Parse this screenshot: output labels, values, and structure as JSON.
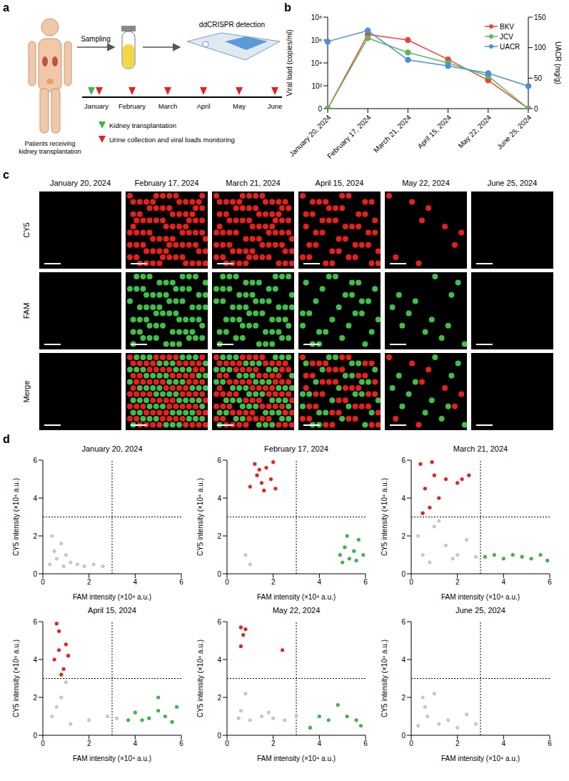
{
  "panel_letters": [
    "a",
    "b",
    "c",
    "d"
  ],
  "panel_a": {
    "patient_label": "Patients receiving kidney transplantation",
    "step_label": "Sampling",
    "detection_label": "ddCRISPR detection",
    "timeline": [
      "January",
      "February",
      "March",
      "April",
      "May",
      "June"
    ],
    "legend": [
      {
        "label": "Kidney transplantation",
        "color": "#3fb54a"
      },
      {
        "label": "Urine collection and viral loads monitoring",
        "color": "#e8201c"
      }
    ]
  },
  "chart_data": [
    {
      "type": "line",
      "categories": [
        "January 20, 2024",
        "February 17, 2024",
        "March 21, 2024",
        "April 15, 2024",
        "May 22, 2024",
        "June 25, 2024"
      ],
      "ylabel": "Viral load (copies/ml)",
      "y2label": "UACR (mg/g)",
      "log": "y",
      "ylim": [
        0,
        100000000
      ],
      "yticks": [
        0,
        {
          "value": 100,
          "label": "10²"
        },
        {
          "value": 10000,
          "label": "10⁴"
        },
        {
          "value": 1000000,
          "label": "10⁶"
        },
        {
          "value": 100000000,
          "label": "10⁸"
        }
      ],
      "y2lim": [
        0,
        150
      ],
      "y2ticks": [
        0,
        50,
        100,
        150
      ],
      "legend": "upper right",
      "marker": "circle",
      "series": [
        {
          "name": "BKV",
          "color": "#e8443a",
          "values": [
            0,
            3000000,
            1000000,
            20000,
            300,
            0
          ]
        },
        {
          "name": "JCV",
          "color": "#5cb85c",
          "values": [
            0,
            1500000,
            80000,
            10000,
            700,
            0
          ]
        },
        {
          "name": "UACR",
          "color": "#4a90d9",
          "axis": "y2",
          "values": [
            110,
            128,
            80,
            70,
            58,
            37
          ]
        }
      ]
    },
    {
      "type": "scatter",
      "title": "January 20, 2024",
      "xlabel": "FAM intensity (×10⁴ a.u.)",
      "ylabel": "CY5 intensity (×10⁴ a.u.)",
      "xlim": [
        0,
        6
      ],
      "ylim": [
        0,
        6
      ],
      "xticks": [
        0,
        2,
        4,
        6
      ],
      "yticks": [
        0,
        2,
        4,
        6
      ],
      "thresholds": {
        "x": 3,
        "y": 3
      },
      "marker": "circle",
      "series": [
        {
          "color": "#c8c8c8",
          "x": [
            0.3,
            0.6,
            0.9,
            1.2,
            1.5,
            1.8,
            2.2,
            2.6,
            0.5,
            1.0,
            0.4,
            0.8
          ],
          "values": [
            0.5,
            0.8,
            0.4,
            0.6,
            0.5,
            0.4,
            0.5,
            0.4,
            1.2,
            1.0,
            2.0,
            1.6
          ]
        }
      ]
    },
    {
      "type": "scatter",
      "title": "February 17, 2024",
      "xlabel": "FAM intensity (×10⁴ a.u.)",
      "ylabel": "CY5 intensity (×10⁴ a.u.)",
      "xlim": [
        0,
        6
      ],
      "ylim": [
        0,
        6
      ],
      "xticks": [
        0,
        2,
        4,
        6
      ],
      "yticks": [
        0,
        2,
        4,
        6
      ],
      "thresholds": {
        "x": 3,
        "y": 3
      },
      "marker": "circle",
      "series": [
        {
          "color": "#c8c8c8",
          "x": [
            0.8,
            1.0
          ],
          "values": [
            1.0,
            0.5
          ]
        },
        {
          "color": "#e8201c",
          "x": [
            1.0,
            1.3,
            1.5,
            1.7,
            1.9,
            2.1,
            1.2,
            1.6,
            2.0,
            1.4
          ],
          "values": [
            4.6,
            5.2,
            4.8,
            5.6,
            5.0,
            4.5,
            5.8,
            4.4,
            5.9,
            5.5
          ]
        },
        {
          "color": "#3fb54a",
          "x": [
            4.9,
            5.1,
            5.3,
            5.5,
            5.7,
            5.9,
            5.2,
            5.6,
            5.0
          ],
          "values": [
            1.0,
            1.4,
            0.8,
            1.2,
            1.8,
            1.0,
            2.0,
            0.7,
            0.6
          ]
        }
      ]
    },
    {
      "type": "scatter",
      "title": "March 21, 2024",
      "xlabel": "FAM intensity (×10⁴ a.u.)",
      "ylabel": "CY5 intensity (×10⁴ a.u.)",
      "xlim": [
        0,
        6
      ],
      "ylim": [
        0,
        6
      ],
      "xticks": [
        0,
        2,
        4,
        6
      ],
      "yticks": [
        0,
        2,
        4,
        6
      ],
      "thresholds": {
        "x": 3,
        "y": 3
      },
      "marker": "circle",
      "series": [
        {
          "color": "#c8c8c8",
          "x": [
            0.5,
            1.0,
            1.5,
            2.0,
            0.8,
            1.2,
            2.4,
            0.3,
            1.8,
            2.8
          ],
          "values": [
            1.0,
            2.5,
            1.5,
            1.0,
            0.6,
            2.8,
            1.8,
            2.0,
            0.8,
            0.9
          ]
        },
        {
          "color": "#e8201c",
          "x": [
            0.4,
            0.6,
            0.8,
            1.0,
            0.5,
            1.5,
            2.0,
            2.5,
            1.2,
            0.9,
            2.2
          ],
          "values": [
            5.8,
            4.5,
            3.5,
            5.2,
            3.2,
            5.0,
            4.8,
            5.2,
            4.0,
            5.9,
            5.0
          ]
        },
        {
          "color": "#3fb54a",
          "x": [
            3.2,
            3.6,
            4.0,
            4.4,
            4.8,
            5.2,
            5.6,
            5.9
          ],
          "values": [
            0.9,
            1.0,
            0.8,
            1.0,
            0.9,
            0.8,
            1.0,
            0.7
          ]
        }
      ]
    },
    {
      "type": "scatter",
      "title": "April 15, 2024",
      "xlabel": "FAM intensity (×10⁴ a.u.)",
      "ylabel": "CY5 intensity (×10⁴ a.u.)",
      "xlim": [
        0,
        6
      ],
      "ylim": [
        0,
        6
      ],
      "xticks": [
        0,
        2,
        4,
        6
      ],
      "yticks": [
        0,
        2,
        4,
        6
      ],
      "thresholds": {
        "x": 3,
        "y": 3
      },
      "marker": "circle",
      "series": [
        {
          "color": "#c8c8c8",
          "x": [
            0.4,
            0.8,
            1.2,
            2.0,
            2.8,
            1.0,
            0.6,
            3.2
          ],
          "values": [
            1.0,
            2.0,
            0.6,
            0.8,
            1.0,
            2.8,
            1.5,
            0.9
          ]
        },
        {
          "color": "#e8201c",
          "x": [
            0.5,
            0.7,
            0.9,
            1.0,
            0.6,
            1.1,
            0.8,
            0.7
          ],
          "values": [
            4.0,
            5.5,
            3.5,
            4.8,
            5.9,
            4.2,
            3.2,
            4.5
          ]
        },
        {
          "color": "#3fb54a",
          "x": [
            3.7,
            4.0,
            4.6,
            5.0,
            5.3,
            5.6,
            5.8,
            5.0,
            4.3
          ],
          "values": [
            0.8,
            1.2,
            0.9,
            1.3,
            1.0,
            0.7,
            1.5,
            2.0,
            0.8
          ]
        }
      ]
    },
    {
      "type": "scatter",
      "title": "May 22, 2024",
      "xlabel": "FAM intensity (×10⁴ a.u.)",
      "ylabel": "CY5 intensity (×10⁴ a.u.)",
      "xlim": [
        0,
        6
      ],
      "ylim": [
        0,
        6
      ],
      "xticks": [
        0,
        2,
        4,
        6
      ],
      "yticks": [
        0,
        2,
        4,
        6
      ],
      "thresholds": {
        "x": 3,
        "y": 3
      },
      "marker": "circle",
      "series": [
        {
          "color": "#c8c8c8",
          "x": [
            0.5,
            1.0,
            1.5,
            2.0,
            2.5,
            3.0,
            0.8,
            0.6,
            1.8
          ],
          "values": [
            0.9,
            0.8,
            1.0,
            0.9,
            0.8,
            1.0,
            2.2,
            1.3,
            1.2
          ]
        },
        {
          "color": "#e8201c",
          "x": [
            0.6,
            0.7,
            0.6,
            0.8,
            2.4
          ],
          "values": [
            5.7,
            5.3,
            4.7,
            5.6,
            4.5
          ]
        },
        {
          "color": "#3fb54a",
          "x": [
            3.6,
            4.0,
            4.4,
            4.8,
            5.2,
            5.6,
            5.8
          ],
          "values": [
            0.4,
            1.0,
            0.8,
            1.6,
            1.0,
            0.8,
            0.5
          ]
        }
      ]
    },
    {
      "type": "scatter",
      "title": "June 25, 2024",
      "xlabel": "FAM intensity (×10⁴ a.u.)",
      "ylabel": "CY5 intensity (×10⁴ a.u.)",
      "xlim": [
        0,
        6
      ],
      "ylim": [
        0,
        6
      ],
      "xticks": [
        0,
        2,
        4,
        6
      ],
      "yticks": [
        0,
        2,
        4,
        6
      ],
      "thresholds": {
        "x": 3,
        "y": 3
      },
      "marker": "circle",
      "series": [
        {
          "color": "#c8c8c8",
          "x": [
            0.3,
            0.7,
            1.2,
            1.6,
            2.0,
            2.4,
            2.8,
            0.5,
            1.0,
            0.6
          ],
          "values": [
            0.5,
            1.0,
            0.6,
            0.8,
            0.4,
            1.1,
            0.6,
            2.0,
            2.2,
            1.5
          ]
        }
      ]
    }
  ],
  "panel_c": {
    "row_labels": [
      "CY5",
      "FAM",
      "Merge"
    ],
    "dates": [
      "January 20, 2024",
      "February 17, 2024",
      "March 21, 2024",
      "April 15, 2024",
      "May 22, 2024",
      "June 25, 2024"
    ],
    "droplets": {
      "CY5": [
        0,
        80,
        75,
        45,
        9,
        0
      ],
      "FAM": [
        0,
        64,
        55,
        28,
        13,
        0
      ]
    },
    "colors": {
      "CY5": "#e8201c",
      "FAM": "#3fbf48"
    }
  }
}
